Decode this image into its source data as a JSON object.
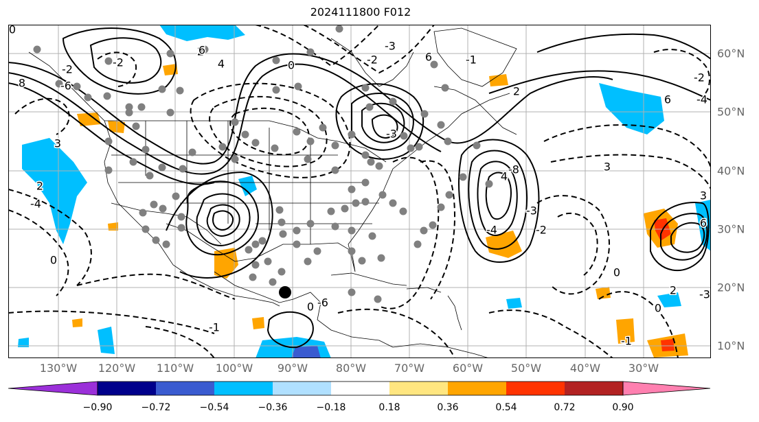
{
  "title": "2024111800 F012",
  "lon_labels": [
    "130°W",
    "120°W",
    "110°W",
    "100°W",
    "90°W",
    "80°W",
    "70°W",
    "60°W",
    "50°W",
    "40°W",
    "30°W"
  ],
  "lat_labels": [
    "60°N",
    "50°N",
    "40°N",
    "30°N",
    "20°N",
    "10°N"
  ],
  "contour_labels": [
    "0",
    "2",
    "-3",
    "6",
    "-2",
    "-6",
    "4",
    "6",
    "-2",
    "8",
    "-1",
    "0",
    "-2",
    "2",
    "4",
    "-3",
    "-8",
    "-3",
    "-4",
    "-2",
    "0",
    "3",
    "6",
    "-2",
    "-4",
    "2",
    "0",
    "-3",
    "-1",
    "2",
    "0",
    "-4",
    "3",
    "3",
    "6",
    "-6",
    "0",
    "-1"
  ],
  "colorbar": {
    "ticks": [
      "−0.90",
      "−0.72",
      "−0.54",
      "−0.36",
      "−0.18",
      "0.18",
      "0.36",
      "0.54",
      "0.72",
      "0.90"
    ],
    "colors": [
      "#9b30d9",
      "#00008b",
      "#3a5bd0",
      "#00bfff",
      "#b0e0ff",
      "#ffffff",
      "#ffe680",
      "#ffa500",
      "#ff3300",
      "#b22222",
      "#ff80b0"
    ],
    "under_color": "#9b30d9",
    "over_color": "#ff80b0"
  }
}
